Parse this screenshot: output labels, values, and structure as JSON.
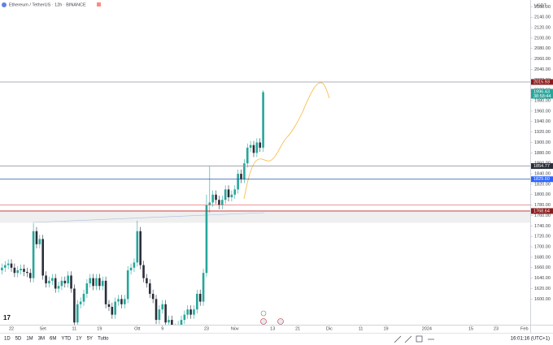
{
  "header": {
    "title": "Ethereum / TetherUS · 12h · BINANCE",
    "currency": "USDT"
  },
  "toolbar": {
    "ranges": [
      "1D",
      "5D",
      "1M",
      "3M",
      "6M",
      "YTD",
      "1Y",
      "5Y",
      "Tutto"
    ],
    "clock": "16:01:16 (UTC+1)"
  },
  "chart_data": {
    "type": "candlestick",
    "up_color": "#26a69a",
    "down_color": "#2a2e39",
    "ylim": [
      1543,
      2173
    ],
    "xlim": [
      -3.62,
      164.86
    ],
    "yticks": [
      {
        "value": 2160,
        "label": "2160.00"
      },
      {
        "value": 2140,
        "label": "2140.00"
      },
      {
        "value": 2120,
        "label": "2120.00"
      },
      {
        "value": 2100,
        "label": "2100.00"
      },
      {
        "value": 2080,
        "label": "2080.00"
      },
      {
        "value": 2060,
        "label": "2060.00"
      },
      {
        "value": 2040,
        "label": "2040.00"
      },
      {
        "value": 2020,
        "label": "2020.00"
      },
      {
        "value": 2000,
        "label": "2000.00"
      },
      {
        "value": 1980,
        "label": "1980.00"
      },
      {
        "value": 1960,
        "label": "1960.00"
      },
      {
        "value": 1940,
        "label": "1940.00"
      },
      {
        "value": 1920,
        "label": "1920.00"
      },
      {
        "value": 1900,
        "label": "1900.00"
      },
      {
        "value": 1880,
        "label": "1880.00"
      },
      {
        "value": 1860,
        "label": "1860.00"
      },
      {
        "value": 1840,
        "label": "1840.00"
      },
      {
        "value": 1820,
        "label": "1820.00"
      },
      {
        "value": 1800,
        "label": "1800.00"
      },
      {
        "value": 1780,
        "label": "1780.00"
      },
      {
        "value": 1760,
        "label": "1760.00"
      },
      {
        "value": 1740,
        "label": "1740.00"
      },
      {
        "value": 1720,
        "label": "1720.00"
      },
      {
        "value": 1700,
        "label": "1700.00"
      },
      {
        "value": 1680,
        "label": "1680.00"
      },
      {
        "value": 1660,
        "label": "1660.00"
      },
      {
        "value": 1640,
        "label": "1640.00"
      },
      {
        "value": 1620,
        "label": "1620.00"
      },
      {
        "value": 1600,
        "label": "1600.00"
      }
    ],
    "xticks": [
      {
        "value": 0,
        "label": "22"
      },
      {
        "value": 10,
        "label": "Set"
      },
      {
        "value": 20,
        "label": "11"
      },
      {
        "value": 28,
        "label": "19"
      },
      {
        "value": 40,
        "label": "Ott"
      },
      {
        "value": 48,
        "label": "9"
      },
      {
        "value": 62,
        "label": "23"
      },
      {
        "value": 71,
        "label": "Nov"
      },
      {
        "value": 83,
        "label": "13"
      },
      {
        "value": 91,
        "label": "21"
      },
      {
        "value": 101,
        "label": "Dic"
      },
      {
        "value": 111,
        "label": "11"
      },
      {
        "value": 119,
        "label": "19"
      },
      {
        "value": 132,
        "label": "2024"
      },
      {
        "value": 146,
        "label": "15"
      },
      {
        "value": 154,
        "label": "23"
      },
      {
        "value": 163,
        "label": "Feb"
      }
    ],
    "x": [
      -3,
      -2,
      -1,
      0,
      1,
      2,
      3,
      4,
      5,
      6,
      7,
      8,
      9,
      10,
      11,
      12,
      13,
      14,
      15,
      16,
      17,
      18,
      19,
      20,
      21,
      22,
      23,
      24,
      25,
      26,
      27,
      28,
      29,
      30,
      31,
      32,
      33,
      34,
      35,
      36,
      37,
      38,
      39,
      40,
      41,
      42,
      43,
      44,
      45,
      46,
      47,
      48,
      49,
      50,
      51,
      52,
      53,
      54,
      55,
      56,
      57,
      58,
      59,
      60,
      61,
      62,
      63,
      64,
      65,
      66,
      67,
      68,
      69,
      70,
      71,
      72,
      73,
      74,
      75,
      76,
      77,
      78,
      79,
      80
    ],
    "open": [
      1655,
      1660,
      1665,
      1668,
      1660,
      1650,
      1655,
      1658,
      1652,
      1650,
      1640,
      1730,
      1705,
      1715,
      1645,
      1630,
      1635,
      1640,
      1620,
      1625,
      1635,
      1630,
      1645,
      1620,
      1555,
      1590,
      1595,
      1610,
      1630,
      1640,
      1625,
      1640,
      1625,
      1635,
      1590,
      1585,
      1570,
      1595,
      1600,
      1590,
      1600,
      1655,
      1660,
      1670,
      1730,
      1665,
      1640,
      1630,
      1610,
      1600,
      1560,
      1580,
      1590,
      1555,
      1560,
      1540,
      1545,
      1550,
      1560,
      1570,
      1580,
      1570,
      1580,
      1610,
      1595,
      1650,
      1780,
      1785,
      1800,
      1790,
      1780,
      1790,
      1810,
      1795,
      1800,
      1810,
      1840,
      1830,
      1860,
      1890,
      1895,
      1880,
      1900,
      1890
    ],
    "high": [
      1668,
      1673,
      1676,
      1676,
      1668,
      1663,
      1666,
      1666,
      1660,
      1658,
      1745,
      1738,
      1723,
      1723,
      1653,
      1643,
      1648,
      1648,
      1633,
      1643,
      1643,
      1653,
      1653,
      1628,
      1598,
      1603,
      1618,
      1638,
      1648,
      1648,
      1648,
      1648,
      1643,
      1643,
      1598,
      1593,
      1603,
      1608,
      1608,
      1608,
      1663,
      1668,
      1678,
      1750,
      1738,
      1673,
      1648,
      1638,
      1618,
      1608,
      1588,
      1598,
      1598,
      1568,
      1568,
      1553,
      1558,
      1568,
      1578,
      1588,
      1588,
      1588,
      1618,
      1618,
      1658,
      1800,
      1855,
      1808,
      1808,
      1798,
      1798,
      1818,
      1818,
      1808,
      1818,
      1848,
      1848,
      1868,
      1898,
      1903,
      1903,
      1908,
      1908,
      2000
    ],
    "low": [
      1647,
      1652,
      1657,
      1652,
      1642,
      1642,
      1647,
      1644,
      1642,
      1632,
      1632,
      1697,
      1697,
      1637,
      1622,
      1622,
      1627,
      1612,
      1612,
      1617,
      1622,
      1622,
      1612,
      1531,
      1547,
      1582,
      1587,
      1602,
      1622,
      1617,
      1617,
      1617,
      1617,
      1582,
      1577,
      1562,
      1562,
      1587,
      1582,
      1582,
      1592,
      1647,
      1652,
      1662,
      1657,
      1632,
      1622,
      1602,
      1592,
      1552,
      1552,
      1572,
      1547,
      1547,
      1525,
      1532,
      1537,
      1542,
      1552,
      1562,
      1562,
      1562,
      1572,
      1587,
      1587,
      1642,
      1765,
      1777,
      1782,
      1772,
      1772,
      1782,
      1787,
      1787,
      1792,
      1802,
      1822,
      1822,
      1852,
      1882,
      1872,
      1872,
      1882,
      1882
    ],
    "close": [
      1660,
      1665,
      1668,
      1660,
      1650,
      1655,
      1658,
      1652,
      1650,
      1640,
      1730,
      1705,
      1715,
      1645,
      1630,
      1635,
      1640,
      1620,
      1625,
      1635,
      1630,
      1645,
      1620,
      1555,
      1590,
      1595,
      1610,
      1630,
      1640,
      1625,
      1640,
      1625,
      1635,
      1590,
      1585,
      1570,
      1595,
      1600,
      1590,
      1600,
      1655,
      1660,
      1670,
      1730,
      1665,
      1640,
      1630,
      1610,
      1600,
      1560,
      1580,
      1590,
      1555,
      1560,
      1540,
      1545,
      1550,
      1560,
      1570,
      1580,
      1570,
      1580,
      1610,
      1595,
      1650,
      1780,
      1785,
      1800,
      1790,
      1780,
      1790,
      1810,
      1795,
      1800,
      1810,
      1840,
      1830,
      1860,
      1890,
      1895,
      1880,
      1900,
      1890,
      1996.43
    ],
    "levels": [
      {
        "value": 2015.93,
        "label": "2015.93",
        "color": "#8a1c1c",
        "line": "#9598a1"
      },
      {
        "value": 1854.77,
        "label": "1854.77",
        "color": "#2a2e39",
        "line": "#9598a1"
      },
      {
        "value": 1829.6,
        "label": "1829.60",
        "color": "#2962ff",
        "line": "#1e4fa8"
      },
      {
        "value": 1780,
        "color": "#e57373",
        "line": "#e57373"
      },
      {
        "value": 1768.64,
        "label": "1768.64",
        "color": "#8a1c1c",
        "line": "#c62828"
      }
    ],
    "zone": [
      1746,
      1768.64
    ],
    "last": {
      "value": 1996.43,
      "label": "1996.43",
      "countdown": "38:58:44",
      "color": "#26a69a"
    }
  }
}
